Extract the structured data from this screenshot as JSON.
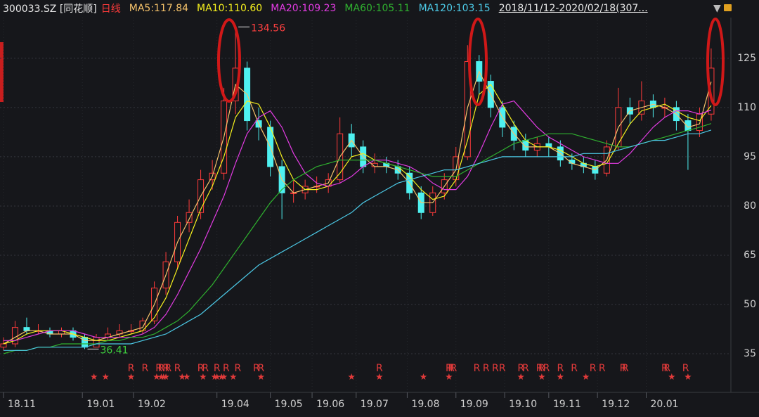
{
  "chart_data": {
    "type": "candlestick",
    "title": "300033.SZ [同花顺]",
    "period": "日线",
    "range_text": "2018/11/12-2020/02/18(307...",
    "up_color": "#ff3b3b",
    "down_color": "#4ef0f0",
    "grid": true,
    "xlim": [
      -1.5,
      313.5
    ],
    "ylim": [
      23.86,
      137.4
    ],
    "yticks": [
      35,
      50,
      65,
      80,
      95,
      110,
      125
    ],
    "xticks": [
      {
        "value": 0,
        "label": "18.11"
      },
      {
        "value": 34,
        "label": "19.01"
      },
      {
        "value": 56,
        "label": "19.02"
      },
      {
        "value": 92,
        "label": "19.04"
      },
      {
        "value": 115,
        "label": "19.05"
      },
      {
        "value": 133,
        "label": "19.06"
      },
      {
        "value": 152,
        "label": "19.07"
      },
      {
        "value": 174,
        "label": "19.08"
      },
      {
        "value": 195,
        "label": "19.09"
      },
      {
        "value": 216,
        "label": "19.10"
      },
      {
        "value": 235,
        "label": "19.11"
      },
      {
        "value": 256,
        "label": "19.12"
      },
      {
        "value": 277,
        "label": "20.01"
      }
    ],
    "x": [
      0,
      5,
      10,
      15,
      20,
      25,
      30,
      35,
      40,
      45,
      50,
      55,
      60,
      65,
      70,
      75,
      80,
      85,
      90,
      95,
      100,
      105,
      110,
      115,
      120,
      125,
      130,
      135,
      140,
      145,
      150,
      155,
      160,
      165,
      170,
      175,
      180,
      185,
      190,
      195,
      200,
      205,
      210,
      215,
      220,
      225,
      230,
      235,
      240,
      245,
      250,
      255,
      260,
      265,
      270,
      275,
      280,
      285,
      290,
      295,
      300,
      305
    ],
    "open": [
      37,
      38,
      43,
      42,
      42,
      41,
      42,
      40,
      37,
      40,
      41,
      42,
      42,
      45,
      55,
      63,
      75,
      78,
      88,
      90,
      112,
      122,
      106,
      104,
      92,
      84,
      84,
      86,
      86,
      88,
      102,
      98,
      92,
      93,
      92,
      90,
      84,
      78,
      84,
      88,
      95,
      124,
      118,
      110,
      104,
      100,
      97,
      99,
      98,
      94,
      93,
      92,
      90,
      98,
      110,
      108,
      112,
      110,
      110,
      106,
      103,
      108
    ],
    "high": [
      40,
      45,
      46,
      44,
      43,
      43,
      43,
      41,
      41,
      43,
      44,
      44,
      46,
      57,
      66,
      77,
      82,
      91,
      94,
      116,
      134.56,
      124,
      110,
      106,
      94,
      88,
      88,
      89,
      90,
      107,
      105,
      100,
      96,
      95,
      94,
      92,
      86,
      86,
      90,
      98,
      129,
      126,
      120,
      112,
      106,
      102,
      101,
      101,
      100,
      96,
      95,
      94,
      100,
      116,
      113,
      118,
      114,
      113,
      112,
      108,
      110,
      128
    ],
    "low": [
      36,
      37,
      41,
      41,
      40,
      40,
      39,
      36.41,
      37,
      39,
      40,
      41,
      41,
      44,
      53,
      61,
      72,
      76,
      85,
      88,
      108,
      103,
      100,
      89,
      76,
      81,
      82,
      84,
      84,
      87,
      95,
      90,
      90,
      90,
      88,
      82,
      76,
      77,
      82,
      86,
      94,
      114,
      107,
      101,
      97,
      95,
      95,
      95,
      92,
      91,
      90,
      88,
      89,
      97,
      105,
      106,
      107,
      107,
      103,
      91,
      101,
      106
    ],
    "close": [
      38,
      43,
      42,
      42,
      41,
      42,
      40,
      37,
      40,
      41,
      42,
      42,
      45,
      55,
      63,
      75,
      78,
      88,
      90,
      112,
      122,
      106,
      104,
      92,
      84,
      84,
      86,
      86,
      88,
      102,
      98,
      92,
      93,
      92,
      90,
      84,
      78,
      84,
      88,
      95,
      124,
      118,
      110,
      104,
      100,
      97,
      99,
      98,
      94,
      93,
      92,
      90,
      98,
      110,
      108,
      112,
      110,
      110,
      106,
      103,
      108,
      122
    ],
    "series": [
      {
        "name": "MA5:117.84",
        "color": "#f6c36b",
        "values": [
          38,
          40,
          42,
          42,
          41,
          41,
          41,
          39,
          39,
          40,
          41,
          42,
          43,
          50,
          59,
          69,
          76,
          83,
          89,
          101,
          117,
          114,
          105,
          98,
          88,
          84,
          85,
          86,
          87,
          95,
          100,
          95,
          92,
          92,
          91,
          87,
          81,
          81,
          86,
          91,
          110,
          121,
          114,
          107,
          102,
          98,
          98,
          98,
          96,
          93,
          92,
          91,
          94,
          104,
          109,
          110,
          111,
          110,
          108,
          104,
          105,
          117.84
        ]
      },
      {
        "name": "MA10:110.60",
        "color": "#f5f01e",
        "values": [
          38,
          39,
          41,
          42,
          42,
          42,
          41,
          40,
          39,
          39,
          40,
          41,
          42,
          46,
          52,
          61,
          70,
          79,
          86,
          95,
          107,
          112,
          111,
          104,
          95,
          88,
          85,
          85,
          86,
          90,
          95,
          96,
          94,
          93,
          92,
          89,
          85,
          82,
          83,
          88,
          100,
          114,
          117,
          111,
          105,
          100,
          98,
          98,
          97,
          95,
          93,
          92,
          93,
          99,
          105,
          109,
          110,
          111,
          109,
          107,
          106,
          110.6
        ]
      },
      {
        "name": "MA20:109.23",
        "color": "#e23be2",
        "values": [
          39,
          39,
          40,
          41,
          42,
          42,
          42,
          41,
          40,
          40,
          40,
          40,
          41,
          43,
          47,
          53,
          60,
          67,
          75,
          83,
          93,
          102,
          107,
          109,
          104,
          96,
          90,
          87,
          86,
          87,
          89,
          92,
          94,
          94,
          93,
          92,
          90,
          87,
          85,
          85,
          89,
          96,
          104,
          111,
          112,
          108,
          104,
          101,
          99,
          97,
          95,
          94,
          93,
          93,
          96,
          100,
          104,
          107,
          109,
          109,
          108,
          109.23
        ]
      },
      {
        "name": "MA60:105.11",
        "color": "#2fb12f",
        "values": [
          35,
          36,
          36,
          37,
          37,
          38,
          38,
          38,
          38,
          39,
          39,
          40,
          40,
          41,
          43,
          45,
          48,
          52,
          56,
          61,
          66,
          71,
          76,
          81,
          85,
          88,
          90,
          92,
          93,
          94,
          94,
          94,
          94,
          93,
          92,
          91,
          90,
          89,
          89,
          89,
          91,
          93,
          95,
          97,
          99,
          100,
          101,
          102,
          102,
          102,
          101,
          100,
          99,
          98,
          98,
          99,
          100,
          101,
          102,
          103,
          104,
          105.11
        ]
      },
      {
        "name": "MA120:103.15",
        "color": "#4cc9e6",
        "values": [
          36,
          36,
          36,
          37,
          37,
          37,
          37,
          37,
          38,
          38,
          38,
          38,
          39,
          40,
          41,
          43,
          45,
          47,
          50,
          53,
          56,
          59,
          62,
          64,
          66,
          68,
          70,
          72,
          74,
          76,
          78,
          81,
          83,
          85,
          87,
          88,
          89,
          90,
          91,
          91,
          92,
          93,
          94,
          95,
          95,
          95,
          95,
          95,
          95,
          95,
          96,
          96,
          96,
          97,
          98,
          99,
          100,
          100,
          101,
          102,
          102,
          103.15
        ]
      }
    ],
    "annotations": {
      "high": 134.56,
      "low": 36.41
    },
    "r_label": "R",
    "r_marks": [
      55,
      61,
      67,
      68,
      70,
      71,
      75,
      85,
      87,
      92,
      96,
      101,
      109,
      111,
      162,
      192,
      193,
      194,
      204,
      208,
      212,
      215,
      223,
      225,
      231,
      232,
      234,
      240,
      246,
      254,
      258,
      267,
      268,
      285,
      286,
      294
    ],
    "star_marks": [
      39,
      44,
      55,
      66,
      68,
      69,
      70,
      77,
      79,
      86,
      91,
      92,
      94,
      95,
      99,
      111,
      150,
      162,
      181,
      192,
      223,
      232,
      240,
      251,
      288,
      295
    ]
  }
}
